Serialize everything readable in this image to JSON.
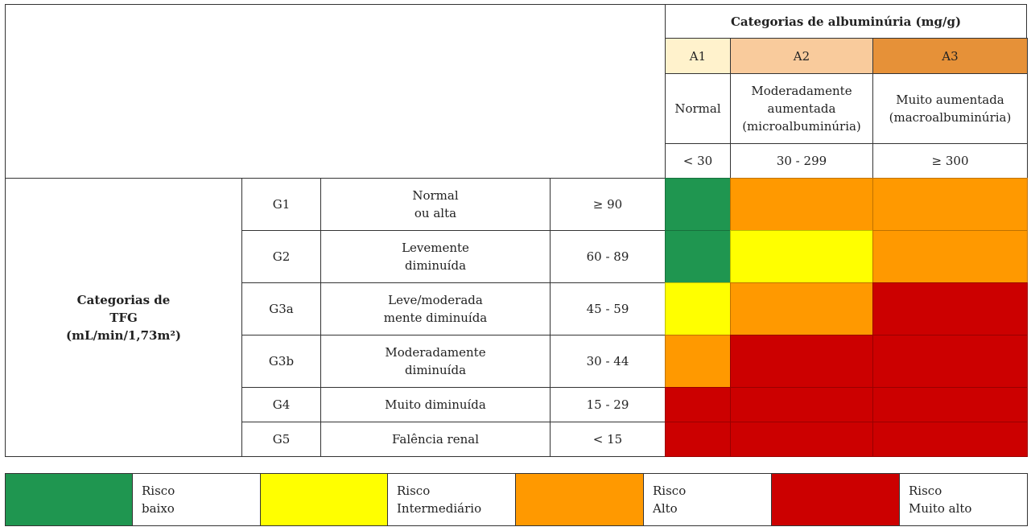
{
  "albuminuria": {
    "title": "Categorias de albuminúria (mg/g)",
    "columns": [
      {
        "code": "A1",
        "desc": "Normal",
        "range": "< 30",
        "color": "#fff2cc"
      },
      {
        "code": "A2",
        "desc": "Moderadamente\naumentada\n(microalbuminúria)",
        "range": "30 - 299",
        "color": "#f9cb9c"
      },
      {
        "code": "A3",
        "desc": "Muito aumentada\n(macroalbuminúria)",
        "range": "≥ 300",
        "color": "#e69138"
      }
    ]
  },
  "tfg": {
    "title": "Categorias de\nTFG\n(mL/min/1,73m²)",
    "rows": [
      {
        "code": "G1",
        "desc": "Normal\nou alta",
        "range": "≥ 90",
        "risk": [
          "low",
          "high",
          "very_high_o"
        ]
      },
      {
        "code": "G2",
        "desc": "Levemente\ndiminuída",
        "range": "60 - 89",
        "risk": [
          "low",
          "mid",
          "high"
        ]
      },
      {
        "code": "G3a",
        "desc": "Leve/moderada\nmente diminuída",
        "range": "45 - 59",
        "risk": [
          "mid",
          "high",
          "very_high"
        ]
      },
      {
        "code": "G3b",
        "desc": "Moderadamente\ndiminuída",
        "range": "30 - 44",
        "risk": [
          "high",
          "very_high",
          "very_high"
        ]
      },
      {
        "code": "G4",
        "desc": "Muito diminuída",
        "range": "15 - 29",
        "risk": [
          "very_high",
          "very_high",
          "very_high"
        ]
      },
      {
        "code": "G5",
        "desc": "Falência renal",
        "range": "< 15",
        "risk": [
          "very_high",
          "very_high",
          "very_high"
        ]
      }
    ]
  },
  "risk_colors": {
    "low": "#1f9650",
    "mid": "#ffff00",
    "high": "#ff9900",
    "very_high": "#cc0000"
  },
  "legend": [
    {
      "key": "low",
      "label": "Risco\nbaixo"
    },
    {
      "key": "mid",
      "label": "Risco\nIntermediário"
    },
    {
      "key": "high",
      "label": "Risco\nAlto"
    },
    {
      "key": "very_high",
      "label": "Risco\nMuito alto"
    }
  ]
}
